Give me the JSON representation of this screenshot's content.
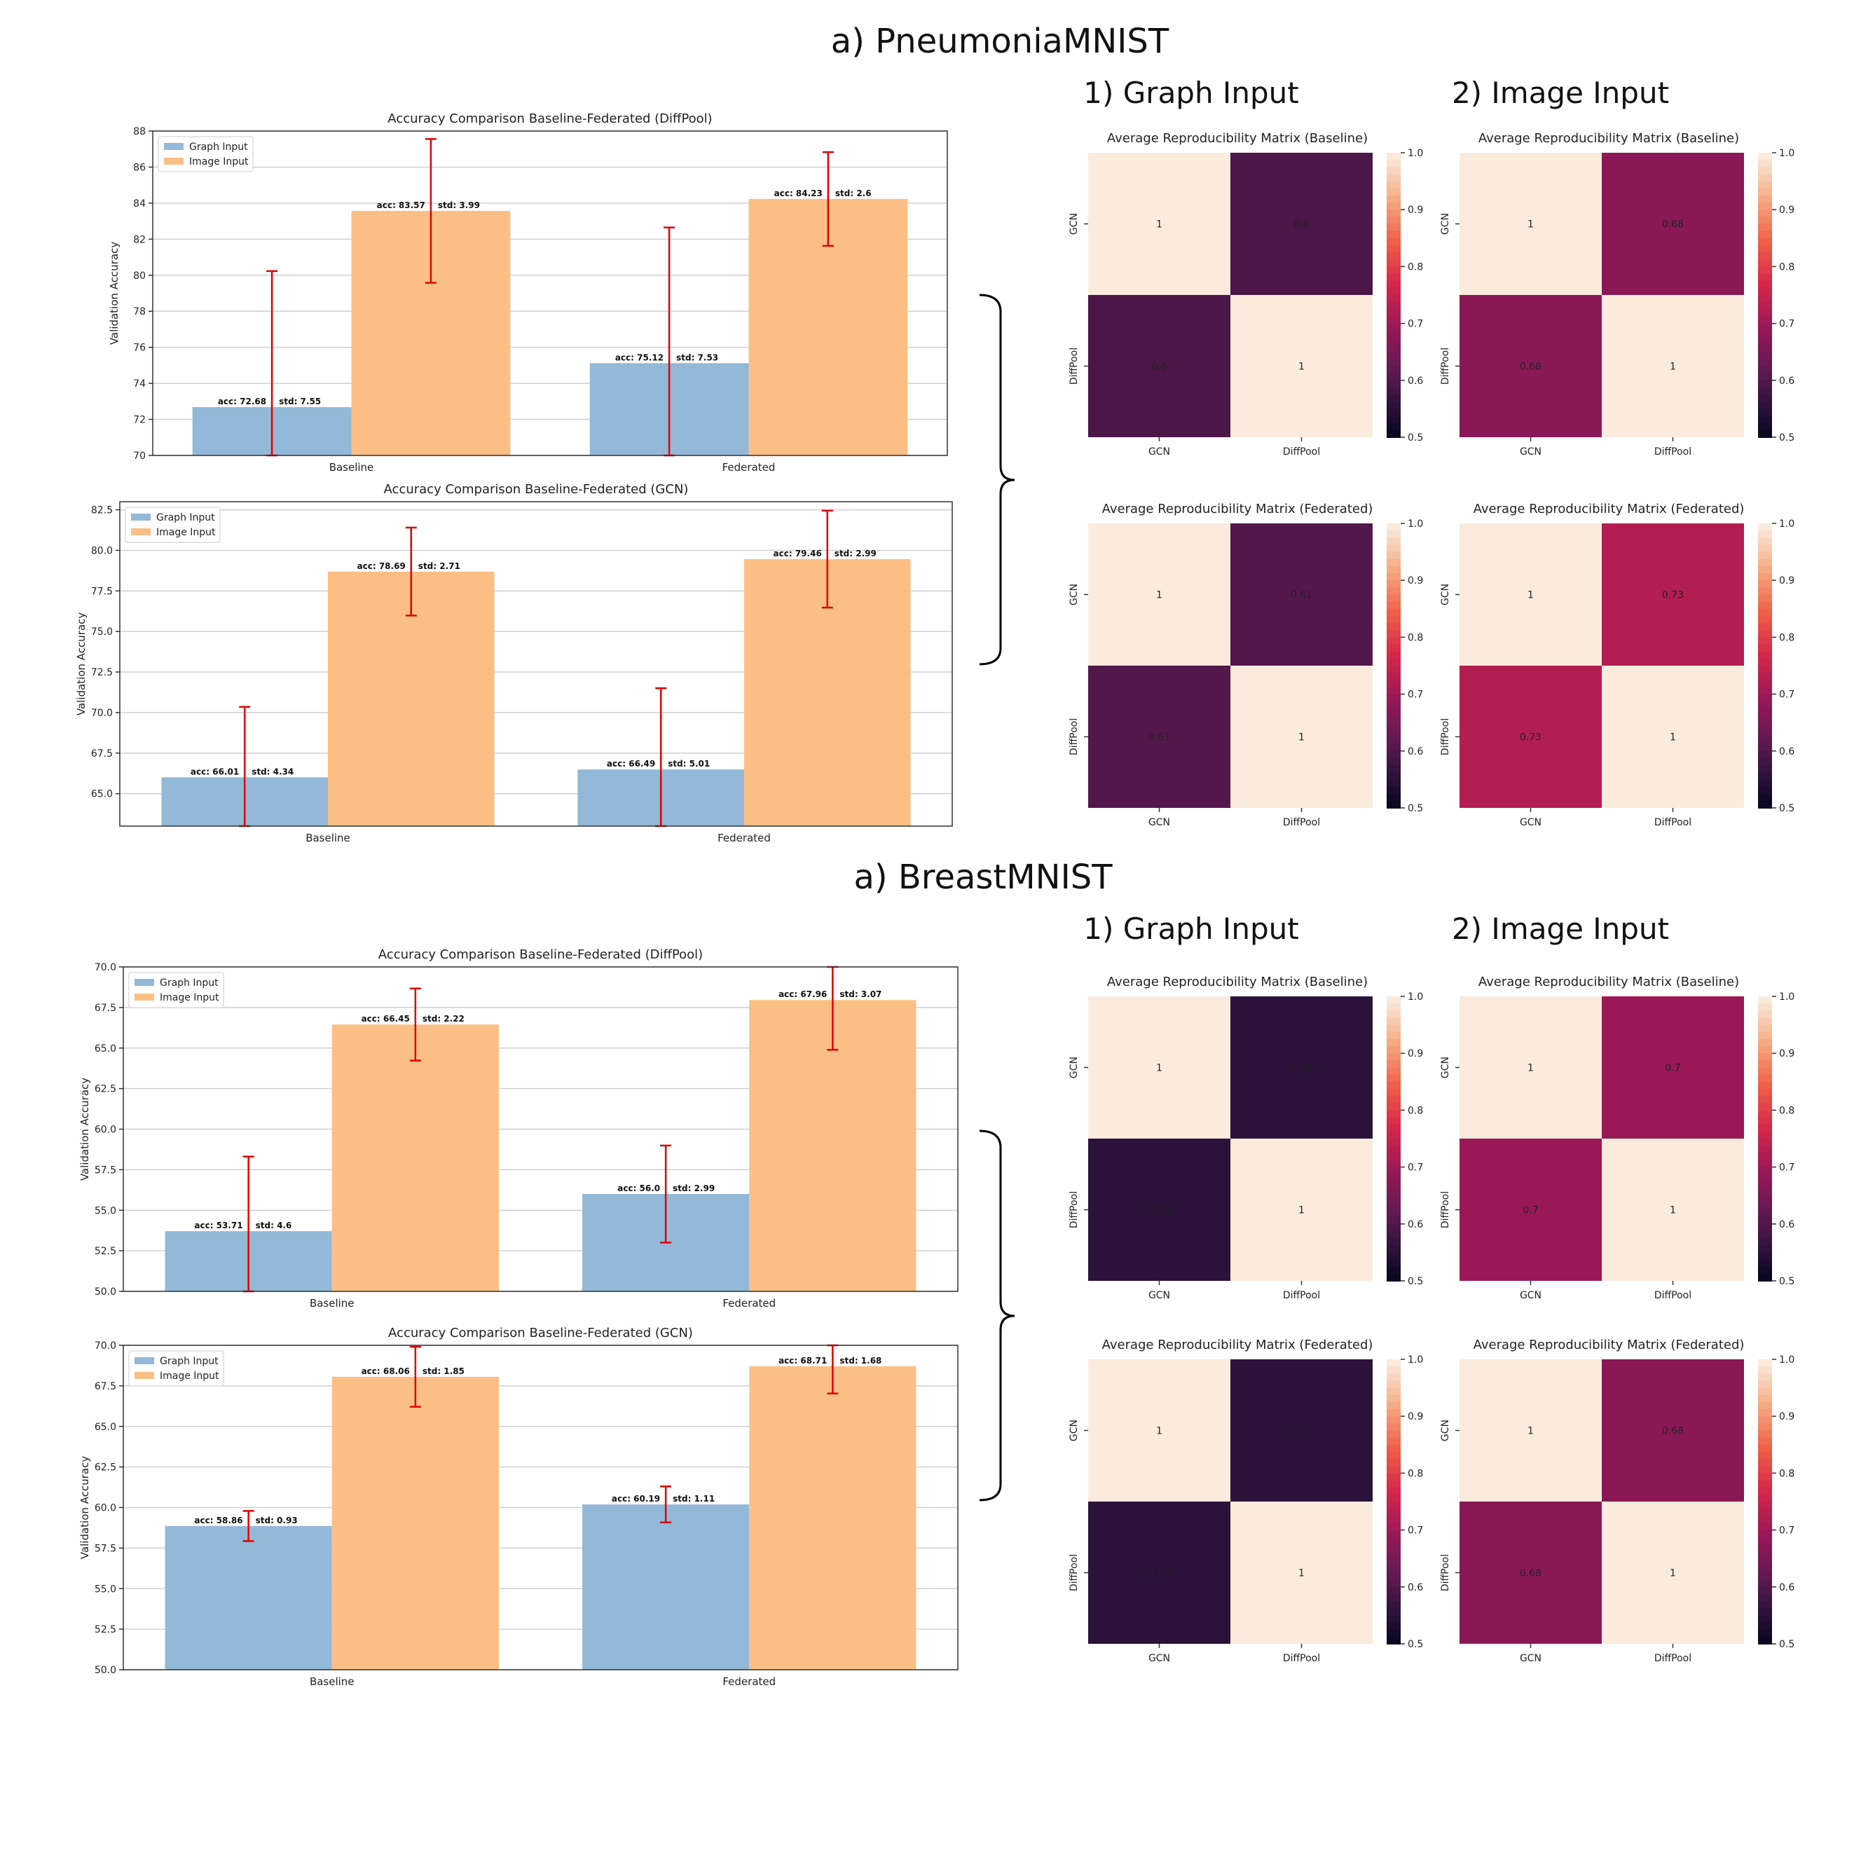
{
  "sections": [
    {
      "title": "a) PneumoniaMNIST",
      "graph_header": "1) Graph Input",
      "image_header": "2) Image Input"
    },
    {
      "title": "a) BreastMNIST",
      "graph_header": "1) Graph Input",
      "image_header": "2) Image Input"
    }
  ],
  "colors": {
    "graph_bar": "#93b8d8",
    "image_bar": "#fbbf86",
    "error_bar": "#e00000",
    "heat_one": "#faebdd",
    "heat_low": "#03051a"
  },
  "chart_data": [
    {
      "type": "bar",
      "title": "Accuracy Comparison Baseline-Federated (DiffPool)",
      "ylabel": "Validation Accuracy",
      "categories": [
        "Baseline",
        "Federated"
      ],
      "ylim": [
        70,
        88
      ],
      "yticks": [
        "70",
        "72",
        "74",
        "76",
        "78",
        "80",
        "82",
        "84",
        "86",
        "88"
      ],
      "legend": [
        "Graph Input",
        "Image Input"
      ],
      "series": [
        {
          "name": "Graph Input",
          "values": [
            72.68,
            75.12
          ],
          "std": [
            7.55,
            7.53
          ],
          "labels": [
            [
              "acc: 72.68",
              "std: 7.55"
            ],
            [
              "acc: 75.12",
              "std: 7.53"
            ]
          ]
        },
        {
          "name": "Image Input",
          "values": [
            83.57,
            84.23
          ],
          "std": [
            3.99,
            2.6
          ],
          "labels": [
            [
              "acc: 83.57",
              "std: 3.99"
            ],
            [
              "acc: 84.23",
              "std: 2.6"
            ]
          ]
        }
      ]
    },
    {
      "type": "bar",
      "title": "Accuracy Comparison Baseline-Federated (GCN)",
      "ylabel": "Validation Accuracy",
      "categories": [
        "Baseline",
        "Federated"
      ],
      "ylim": [
        63,
        83
      ],
      "yticks": [
        "65.0",
        "67.5",
        "70.0",
        "72.5",
        "75.0",
        "77.5",
        "80.0",
        "82.5"
      ],
      "legend": [
        "Graph Input",
        "Image Input"
      ],
      "series": [
        {
          "name": "Graph Input",
          "values": [
            66.01,
            66.49
          ],
          "std": [
            4.34,
            5.01
          ],
          "labels": [
            [
              "acc: 66.01",
              "std: 4.34"
            ],
            [
              "acc: 66.49",
              "std: 5.01"
            ]
          ]
        },
        {
          "name": "Image Input",
          "values": [
            78.69,
            79.46
          ],
          "std": [
            2.71,
            2.99
          ],
          "labels": [
            [
              "acc: 78.69",
              "std: 2.71"
            ],
            [
              "acc: 79.46",
              "std: 2.99"
            ]
          ]
        }
      ]
    },
    {
      "type": "bar",
      "title": "Accuracy Comparison Baseline-Federated (DiffPool)",
      "ylabel": "Validation Accuracy",
      "categories": [
        "Baseline",
        "Federated"
      ],
      "ylim": [
        50,
        70
      ],
      "yticks": [
        "50.0",
        "52.5",
        "55.0",
        "57.5",
        "60.0",
        "62.5",
        "65.0",
        "67.5",
        "70.0"
      ],
      "legend": [
        "Graph Input",
        "Image Input"
      ],
      "series": [
        {
          "name": "Graph Input",
          "values": [
            53.71,
            56.0
          ],
          "std": [
            4.6,
            2.99
          ],
          "labels": [
            [
              "acc: 53.71",
              "std: 4.6"
            ],
            [
              "acc: 56.0",
              "std: 2.99"
            ]
          ]
        },
        {
          "name": "Image Input",
          "values": [
            66.45,
            67.96
          ],
          "std": [
            2.22,
            3.07
          ],
          "labels": [
            [
              "acc: 66.45",
              "std: 2.22"
            ],
            [
              "acc: 67.96",
              "std: 3.07"
            ]
          ]
        }
      ]
    },
    {
      "type": "bar",
      "title": "Accuracy Comparison Baseline-Federated (GCN)",
      "ylabel": "Validation Accuracy",
      "categories": [
        "Baseline",
        "Federated"
      ],
      "ylim": [
        50,
        70
      ],
      "yticks": [
        "50.0",
        "52.5",
        "55.0",
        "57.5",
        "60.0",
        "62.5",
        "65.0",
        "67.5",
        "70.0"
      ],
      "legend": [
        "Graph Input",
        "Image Input"
      ],
      "series": [
        {
          "name": "Graph Input",
          "values": [
            58.86,
            60.19
          ],
          "std": [
            0.93,
            1.11
          ],
          "labels": [
            [
              "acc: 58.86",
              "std: 0.93"
            ],
            [
              "acc: 60.19",
              "std: 1.11"
            ]
          ]
        },
        {
          "name": "Image Input",
          "values": [
            68.06,
            68.71
          ],
          "std": [
            1.85,
            1.68
          ],
          "labels": [
            [
              "acc: 68.06",
              "std: 1.85"
            ],
            [
              "acc: 68.71",
              "std: 1.68"
            ]
          ]
        }
      ]
    },
    {
      "type": "heatmap",
      "title": "Average Reproducibility Matrix (Baseline)",
      "rows": [
        "GCN",
        "DiffPool"
      ],
      "cols": [
        "GCN",
        "DiffPool"
      ],
      "values": [
        [
          1,
          0.6
        ],
        [
          0.6,
          1
        ]
      ],
      "cell_labels": [
        [
          "1",
          "0.6"
        ],
        [
          "0.6",
          "1"
        ]
      ],
      "vmin": 0.5,
      "vmax": 1.0,
      "colorbar_ticks": [
        "1.0",
        "0.9",
        "0.8",
        "0.7",
        "0.6",
        "0.5"
      ]
    },
    {
      "type": "heatmap",
      "title": "Average Reproducibility Matrix (Baseline)",
      "rows": [
        "GCN",
        "DiffPool"
      ],
      "cols": [
        "GCN",
        "DiffPool"
      ],
      "values": [
        [
          1,
          0.68
        ],
        [
          0.68,
          1
        ]
      ],
      "cell_labels": [
        [
          "1",
          "0.68"
        ],
        [
          "0.68",
          "1"
        ]
      ],
      "vmin": 0.5,
      "vmax": 1.0,
      "colorbar_ticks": [
        "1.0",
        "0.9",
        "0.8",
        "0.7",
        "0.6",
        "0.5"
      ]
    },
    {
      "type": "heatmap",
      "title": "Average Reproducibility Matrix (Federated)",
      "rows": [
        "GCN",
        "DiffPool"
      ],
      "cols": [
        "GCN",
        "DiffPool"
      ],
      "values": [
        [
          1,
          0.61
        ],
        [
          0.61,
          1
        ]
      ],
      "cell_labels": [
        [
          "1",
          "0.61"
        ],
        [
          "0.61",
          "1"
        ]
      ],
      "vmin": 0.5,
      "vmax": 1.0,
      "colorbar_ticks": [
        "1.0",
        "0.9",
        "0.8",
        "0.7",
        "0.6",
        "0.5"
      ]
    },
    {
      "type": "heatmap",
      "title": "Average Reproducibility Matrix (Federated)",
      "rows": [
        "GCN",
        "DiffPool"
      ],
      "cols": [
        "GCN",
        "DiffPool"
      ],
      "values": [
        [
          1,
          0.73
        ],
        [
          0.73,
          1
        ]
      ],
      "cell_labels": [
        [
          "1",
          "0.73"
        ],
        [
          "0.73",
          "1"
        ]
      ],
      "vmin": 0.5,
      "vmax": 1.0,
      "colorbar_ticks": [
        "1.0",
        "0.9",
        "0.8",
        "0.7",
        "0.6",
        "0.5"
      ]
    },
    {
      "type": "heatmap",
      "title": "Average Reproducibility Matrix (Baseline)",
      "rows": [
        "GCN",
        "DiffPool"
      ],
      "cols": [
        "GCN",
        "DiffPool"
      ],
      "values": [
        [
          1,
          0.56
        ],
        [
          0.56,
          1
        ]
      ],
      "cell_labels": [
        [
          "1",
          "0.56"
        ],
        [
          "0.56",
          "1"
        ]
      ],
      "vmin": 0.5,
      "vmax": 1.0,
      "colorbar_ticks": [
        "1.0",
        "0.9",
        "0.8",
        "0.7",
        "0.6",
        "0.5"
      ]
    },
    {
      "type": "heatmap",
      "title": "Average Reproducibility Matrix (Baseline)",
      "rows": [
        "GCN",
        "DiffPool"
      ],
      "cols": [
        "GCN",
        "DiffPool"
      ],
      "values": [
        [
          1,
          0.7
        ],
        [
          0.7,
          1
        ]
      ],
      "cell_labels": [
        [
          "1",
          "0.7"
        ],
        [
          "0.7",
          "1"
        ]
      ],
      "vmin": 0.5,
      "vmax": 1.0,
      "colorbar_ticks": [
        "1.0",
        "0.9",
        "0.8",
        "0.7",
        "0.6",
        "0.5"
      ]
    },
    {
      "type": "heatmap",
      "title": "Average Reproducibility Matrix (Federated)",
      "rows": [
        "GCN",
        "DiffPool"
      ],
      "cols": [
        "GCN",
        "DiffPool"
      ],
      "values": [
        [
          1,
          0.56
        ],
        [
          0.56,
          1
        ]
      ],
      "cell_labels": [
        [
          "1",
          "0.56"
        ],
        [
          "0.56",
          "1"
        ]
      ],
      "vmin": 0.5,
      "vmax": 1.0,
      "colorbar_ticks": [
        "1.0",
        "0.9",
        "0.8",
        "0.7",
        "0.6",
        "0.5"
      ]
    },
    {
      "type": "heatmap",
      "title": "Average Reproducibility Matrix (Federated)",
      "rows": [
        "GCN",
        "DiffPool"
      ],
      "cols": [
        "GCN",
        "DiffPool"
      ],
      "values": [
        [
          1,
          0.68
        ],
        [
          0.68,
          1
        ]
      ],
      "cell_labels": [
        [
          "1",
          "0.68"
        ],
        [
          "0.68",
          "1"
        ]
      ],
      "vmin": 0.5,
      "vmax": 1.0,
      "colorbar_ticks": [
        "1.0",
        "0.9",
        "0.8",
        "0.7",
        "0.6",
        "0.5"
      ]
    }
  ]
}
